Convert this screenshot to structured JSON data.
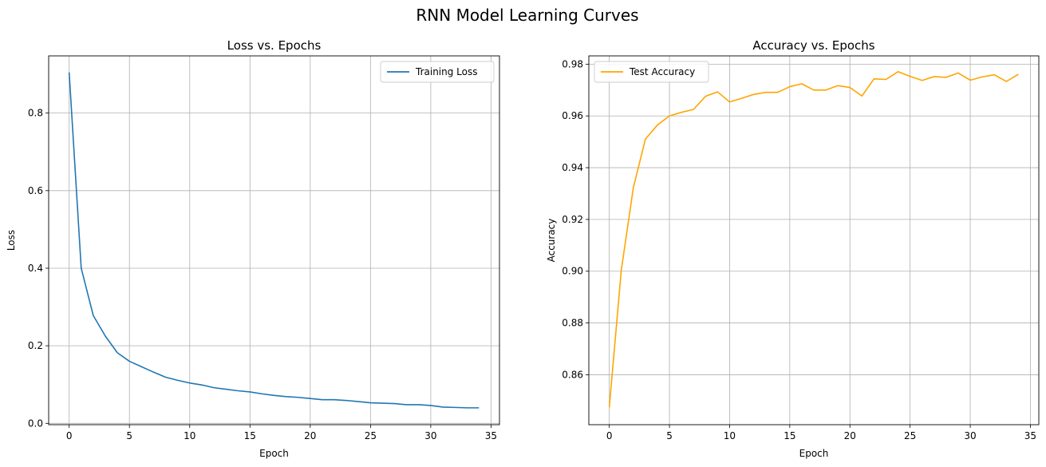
{
  "suptitle": "RNN Model Learning Curves",
  "chart_data": [
    {
      "type": "line",
      "title": "Loss vs. Epochs",
      "xlabel": "Epoch",
      "ylabel": "Loss",
      "xlim": [
        -1.7,
        35.7
      ],
      "ylim": [
        -0.0035,
        0.9475
      ],
      "xticks": [
        0,
        5,
        10,
        15,
        20,
        25,
        30,
        35
      ],
      "yticks": [
        0.0,
        0.2,
        0.4,
        0.6,
        0.8
      ],
      "ytick_labels": [
        "0.0",
        "0.2",
        "0.4",
        "0.6",
        "0.8"
      ],
      "grid": true,
      "legend": "upper right",
      "series": [
        {
          "name": "Training Loss",
          "color": "#1f77b4",
          "x": [
            0,
            1,
            2,
            3,
            4,
            5,
            6,
            7,
            8,
            9,
            10,
            11,
            12,
            13,
            14,
            15,
            16,
            17,
            18,
            19,
            20,
            21,
            22,
            23,
            24,
            25,
            26,
            27,
            28,
            29,
            30,
            31,
            32,
            33,
            34
          ],
          "y": [
            0.905,
            0.4,
            0.278,
            0.225,
            0.182,
            0.16,
            0.146,
            0.132,
            0.119,
            0.111,
            0.104,
            0.099,
            0.092,
            0.088,
            0.084,
            0.081,
            0.076,
            0.072,
            0.069,
            0.067,
            0.064,
            0.061,
            0.061,
            0.059,
            0.056,
            0.053,
            0.052,
            0.051,
            0.048,
            0.048,
            0.046,
            0.042,
            0.041,
            0.04,
            0.04
          ]
        }
      ]
    },
    {
      "type": "line",
      "title": "Accuracy vs. Epochs",
      "xlabel": "Epoch",
      "ylabel": "Accuracy",
      "xlim": [
        -1.7,
        35.7
      ],
      "ylim": [
        0.8407,
        0.9832
      ],
      "xticks": [
        0,
        5,
        10,
        15,
        20,
        25,
        30,
        35
      ],
      "yticks": [
        0.86,
        0.88,
        0.9,
        0.92,
        0.94,
        0.96,
        0.98
      ],
      "ytick_labels": [
        "0.86",
        "0.88",
        "0.90",
        "0.92",
        "0.94",
        "0.96",
        "0.98"
      ],
      "grid": true,
      "legend": "upper left",
      "series": [
        {
          "name": "Test Accuracy",
          "color": "#ffa500",
          "x": [
            0,
            1,
            2,
            3,
            4,
            5,
            6,
            7,
            8,
            9,
            10,
            11,
            12,
            13,
            14,
            15,
            16,
            17,
            18,
            19,
            20,
            21,
            22,
            23,
            24,
            25,
            26,
            27,
            28,
            29,
            30,
            31,
            32,
            33,
            34
          ],
          "y": [
            0.8474,
            0.9005,
            0.9323,
            0.951,
            0.9565,
            0.96,
            0.9614,
            0.9625,
            0.9676,
            0.9693,
            0.9654,
            0.9668,
            0.9683,
            0.9691,
            0.9691,
            0.9713,
            0.9724,
            0.97,
            0.97,
            0.9717,
            0.971,
            0.9677,
            0.9743,
            0.9741,
            0.9771,
            0.9753,
            0.9737,
            0.9752,
            0.9749,
            0.9766,
            0.9738,
            0.9751,
            0.9759,
            0.9733,
            0.9761
          ]
        }
      ]
    }
  ]
}
